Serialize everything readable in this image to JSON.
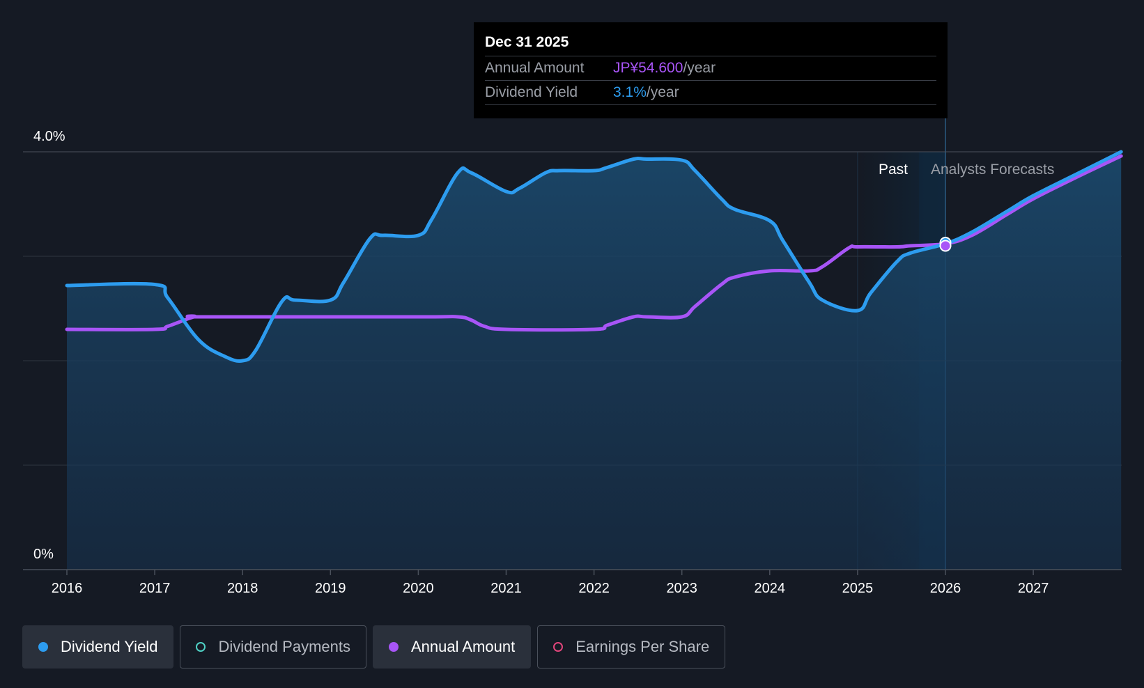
{
  "tooltip": {
    "date": "Dec 31 2025",
    "rows": [
      {
        "label": "Annual Amount",
        "value": "JP¥54.600",
        "unit": "/year"
      },
      {
        "label": "Dividend Yield",
        "value": "3.1%",
        "unit": "/year"
      }
    ]
  },
  "legend": [
    {
      "label": "Dividend Yield",
      "color": "#2d9cef",
      "active": true,
      "hollow": false
    },
    {
      "label": "Dividend Payments",
      "color": "#4fd1c5",
      "active": false,
      "hollow": true
    },
    {
      "label": "Annual Amount",
      "color": "#a855f7",
      "active": true,
      "hollow": false
    },
    {
      "label": "Earnings Per Share",
      "color": "#e0457b",
      "active": false,
      "hollow": true
    }
  ],
  "chart_data": {
    "type": "line",
    "y_axis": {
      "min": 0,
      "max": 4.0,
      "labels": [
        "0%",
        "4.0%"
      ],
      "unit": "%",
      "gridlines": [
        0,
        1,
        2,
        3,
        4
      ]
    },
    "x_axis": {
      "min": 2016,
      "max": 2028,
      "labels": [
        "2016",
        "2017",
        "2018",
        "2019",
        "2020",
        "2021",
        "2022",
        "2023",
        "2024",
        "2025",
        "2026",
        "2027"
      ]
    },
    "regions": {
      "past_label": "Past",
      "forecast_label": "Analysts Forecasts",
      "past_start": 2025,
      "highlight_start": 2025.7,
      "current": 2026
    },
    "series": [
      {
        "name": "Dividend Yield",
        "color": "#2d9cef",
        "area": true,
        "points": [
          [
            2016.0,
            2.72
          ],
          [
            2017.0,
            2.73
          ],
          [
            2017.15,
            2.6
          ],
          [
            2017.5,
            2.2
          ],
          [
            2017.8,
            2.04
          ],
          [
            2018.0,
            2.0
          ],
          [
            2018.15,
            2.1
          ],
          [
            2018.45,
            2.57
          ],
          [
            2018.6,
            2.58
          ],
          [
            2019.0,
            2.58
          ],
          [
            2019.15,
            2.75
          ],
          [
            2019.45,
            3.17
          ],
          [
            2019.6,
            3.2
          ],
          [
            2020.0,
            3.2
          ],
          [
            2020.15,
            3.35
          ],
          [
            2020.45,
            3.8
          ],
          [
            2020.6,
            3.8
          ],
          [
            2021.0,
            3.62
          ],
          [
            2021.15,
            3.65
          ],
          [
            2021.45,
            3.8
          ],
          [
            2021.6,
            3.82
          ],
          [
            2022.0,
            3.82
          ],
          [
            2022.15,
            3.85
          ],
          [
            2022.45,
            3.93
          ],
          [
            2022.6,
            3.93
          ],
          [
            2023.0,
            3.92
          ],
          [
            2023.15,
            3.82
          ],
          [
            2023.45,
            3.55
          ],
          [
            2023.6,
            3.45
          ],
          [
            2024.0,
            3.34
          ],
          [
            2024.15,
            3.15
          ],
          [
            2024.45,
            2.75
          ],
          [
            2024.6,
            2.58
          ],
          [
            2025.0,
            2.48
          ],
          [
            2025.15,
            2.65
          ],
          [
            2025.45,
            2.95
          ],
          [
            2025.6,
            3.03
          ],
          [
            2026.0,
            3.12
          ],
          [
            2026.3,
            3.23
          ],
          [
            2026.7,
            3.43
          ],
          [
            2027.0,
            3.58
          ],
          [
            2027.5,
            3.79
          ],
          [
            2028.0,
            4.0
          ]
        ]
      },
      {
        "name": "Annual Amount",
        "color": "#a855f7",
        "area": false,
        "points": [
          [
            2016.0,
            2.3
          ],
          [
            2017.0,
            2.3
          ],
          [
            2017.15,
            2.33
          ],
          [
            2017.45,
            2.42
          ],
          [
            2017.6,
            2.42
          ],
          [
            2020.0,
            2.42
          ],
          [
            2020.45,
            2.42
          ],
          [
            2020.6,
            2.39
          ],
          [
            2020.75,
            2.33
          ],
          [
            2021.0,
            2.3
          ],
          [
            2022.0,
            2.3
          ],
          [
            2022.15,
            2.34
          ],
          [
            2022.45,
            2.42
          ],
          [
            2022.6,
            2.42
          ],
          [
            2023.0,
            2.42
          ],
          [
            2023.15,
            2.52
          ],
          [
            2023.45,
            2.73
          ],
          [
            2023.6,
            2.8
          ],
          [
            2024.0,
            2.86
          ],
          [
            2024.45,
            2.86
          ],
          [
            2024.6,
            2.9
          ],
          [
            2024.9,
            3.08
          ],
          [
            2025.0,
            3.09
          ],
          [
            2025.45,
            3.09
          ],
          [
            2025.6,
            3.1
          ],
          [
            2026.0,
            3.12
          ],
          [
            2026.3,
            3.2
          ],
          [
            2026.7,
            3.4
          ],
          [
            2027.0,
            3.55
          ],
          [
            2027.5,
            3.76
          ],
          [
            2028.0,
            3.96
          ]
        ]
      }
    ],
    "markers": [
      {
        "series": "Dividend Yield",
        "x": 2026.0,
        "y": 3.13
      },
      {
        "series": "Annual Amount",
        "x": 2026.0,
        "y": 3.1
      }
    ]
  }
}
